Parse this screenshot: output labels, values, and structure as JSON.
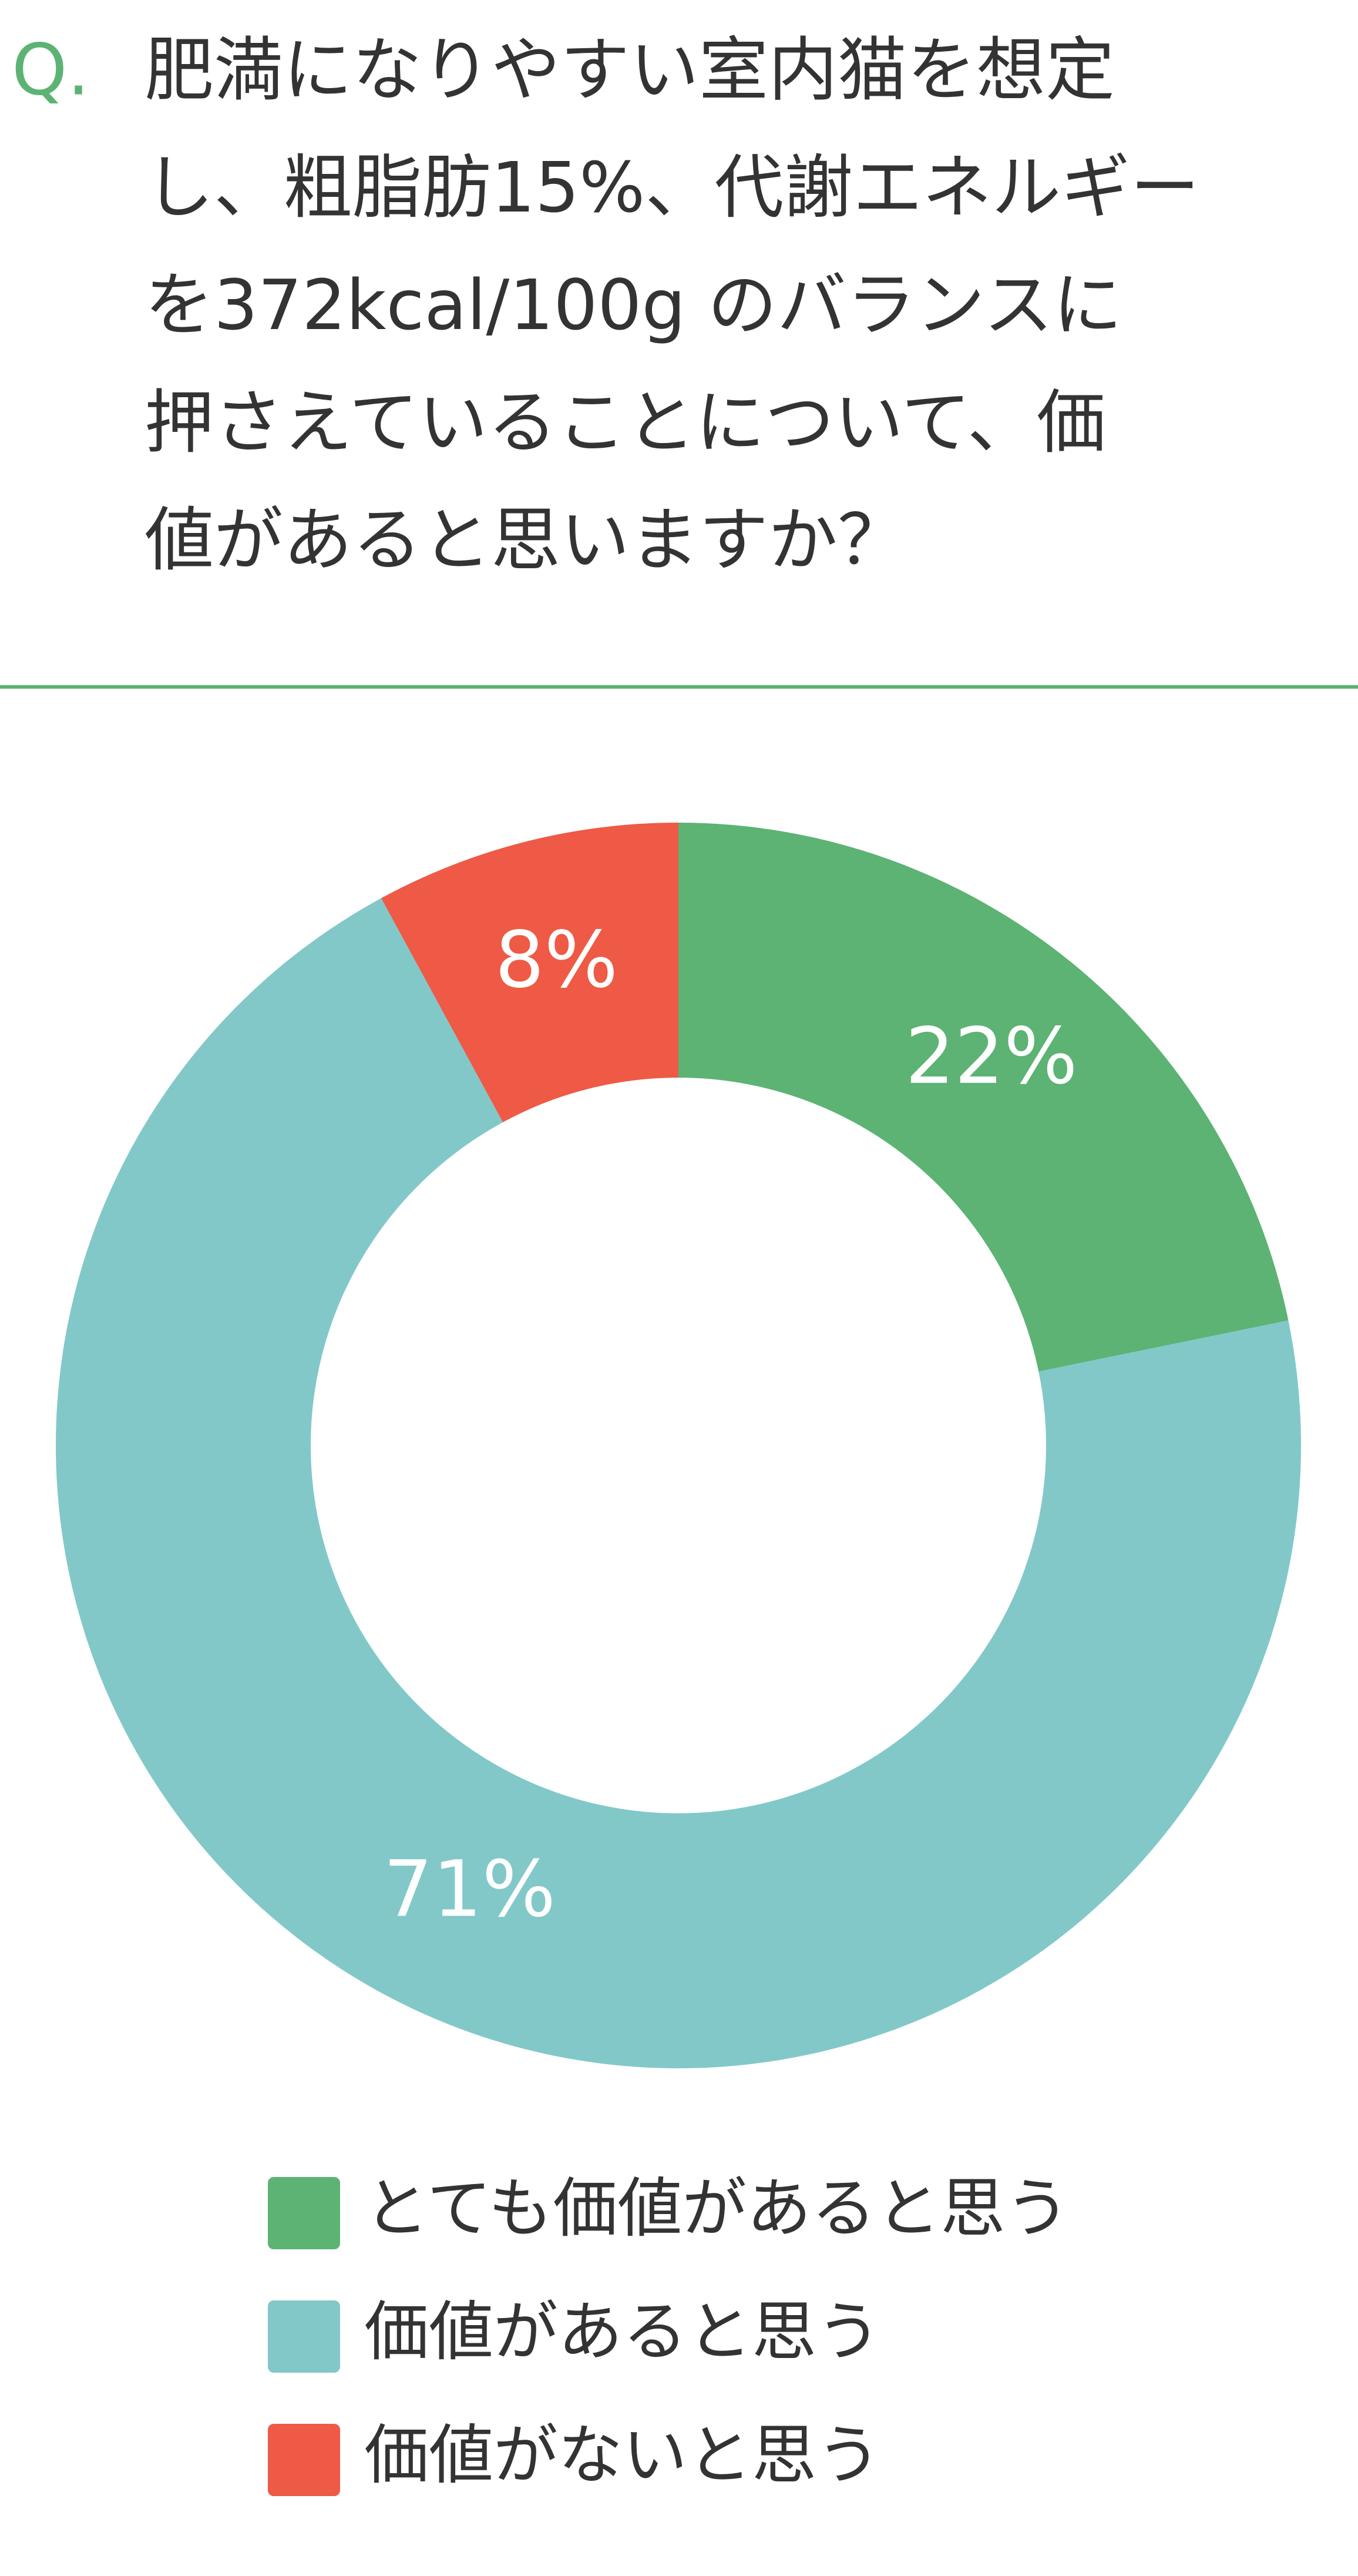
{
  "chart_data": {
    "type": "donut",
    "prefix": "Q.",
    "title": [
      "肥満になりやすい室内猫を想定",
      "し、粗脂肪15%、代謝エネルギー",
      "を372kcal/100g のバランスに",
      "押さえていることについて、価",
      "値があると思いますか？"
    ],
    "categories": [
      "とても価値があると思う",
      "価値があると思う",
      "価値がないと思う"
    ],
    "values": [
      22,
      71,
      8
    ],
    "value_labels": [
      "22%",
      "71%",
      "8%"
    ],
    "colors": [
      "#5cb374",
      "#82c8c9",
      "#ee5a45"
    ],
    "legend": "bottom"
  }
}
